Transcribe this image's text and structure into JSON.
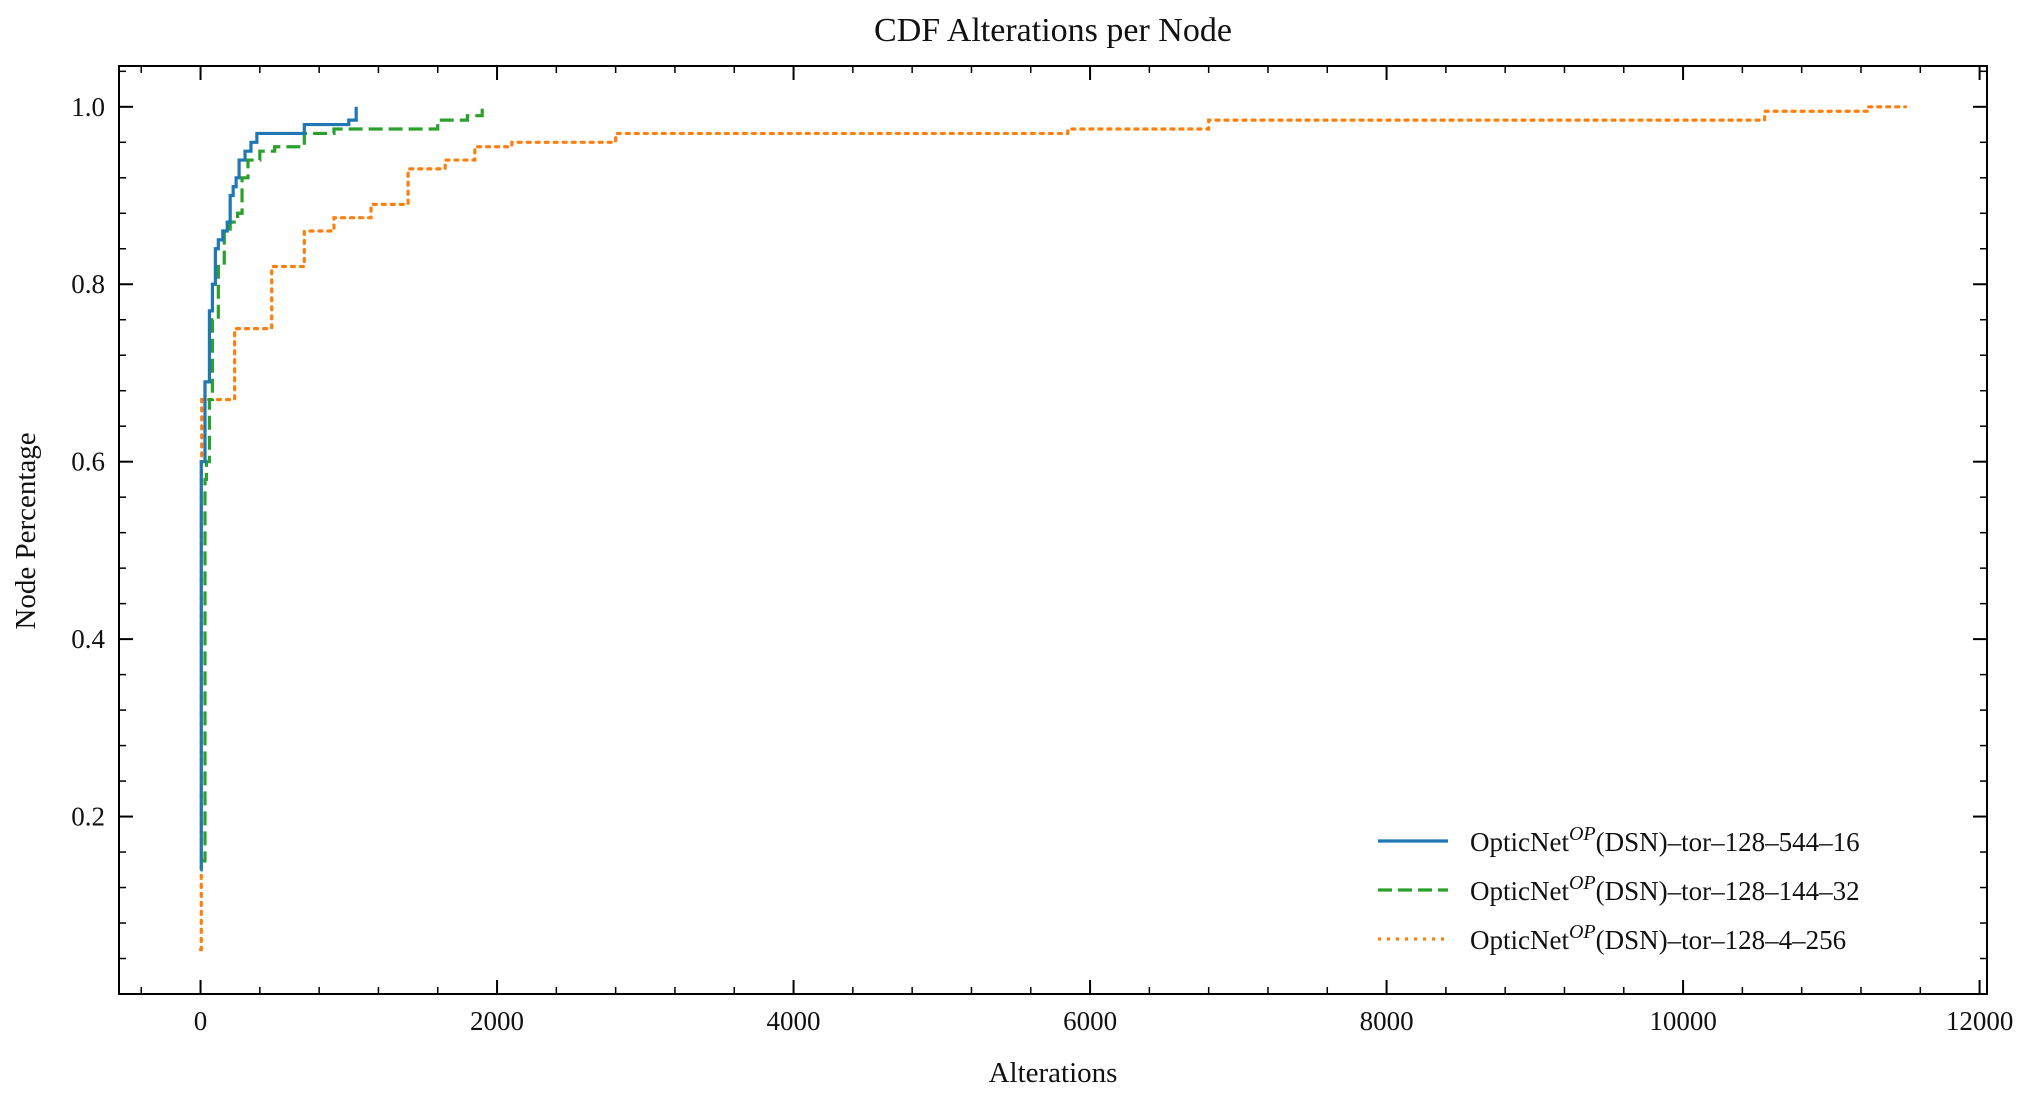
{
  "chart_data": {
    "type": "line",
    "title": "CDF Alterations per Node",
    "xlabel": "Alterations",
    "ylabel": "Node Percentage",
    "xlim": [
      -550,
      12050
    ],
    "ylim": [
      0.0,
      1.046
    ],
    "xticks": [
      0,
      2000,
      4000,
      6000,
      8000,
      10000,
      12000
    ],
    "xtick_labels": [
      "0",
      "2000",
      "4000",
      "6000",
      "8000",
      "10000",
      "12000"
    ],
    "yticks": [
      0.2,
      0.4,
      0.6,
      0.8,
      1.0
    ],
    "ytick_labels": [
      "0.2",
      "0.4",
      "0.6",
      "0.8",
      "1.0"
    ],
    "legend_position": "bottom-right",
    "series": [
      {
        "name": "OpticNet",
        "name_sup": "OP",
        "name_suffix": "(DSN)–tor–128–544–16",
        "color": "#1f77b4",
        "style": "solid",
        "points": [
          [
            0,
            0.14
          ],
          [
            5,
            0.6
          ],
          [
            30,
            0.69
          ],
          [
            60,
            0.77
          ],
          [
            80,
            0.8
          ],
          [
            100,
            0.84
          ],
          [
            120,
            0.85
          ],
          [
            150,
            0.86
          ],
          [
            180,
            0.87
          ],
          [
            200,
            0.9
          ],
          [
            220,
            0.91
          ],
          [
            240,
            0.92
          ],
          [
            260,
            0.94
          ],
          [
            300,
            0.95
          ],
          [
            340,
            0.96
          ],
          [
            380,
            0.97
          ],
          [
            500,
            0.97
          ],
          [
            700,
            0.98
          ],
          [
            1000,
            0.985
          ],
          [
            1050,
            1.0
          ]
        ]
      },
      {
        "name": "OpticNet",
        "name_sup": "OP",
        "name_suffix": "(DSN)–tor–128–144–32",
        "color": "#2ca02c",
        "style": "dashed",
        "points": [
          [
            0,
            0.15
          ],
          [
            30,
            0.58
          ],
          [
            40,
            0.6
          ],
          [
            60,
            0.67
          ],
          [
            80,
            0.76
          ],
          [
            120,
            0.82
          ],
          [
            160,
            0.86
          ],
          [
            200,
            0.87
          ],
          [
            250,
            0.88
          ],
          [
            280,
            0.92
          ],
          [
            320,
            0.94
          ],
          [
            400,
            0.95
          ],
          [
            500,
            0.955
          ],
          [
            700,
            0.97
          ],
          [
            900,
            0.975
          ],
          [
            1600,
            0.985
          ],
          [
            1800,
            0.99
          ],
          [
            1900,
            1.0
          ]
        ]
      },
      {
        "name": "OpticNet",
        "name_sup": "OP",
        "name_suffix": "(DSN)–tor–128–4–256",
        "color": "#ff7f0e",
        "style": "dotted",
        "points": [
          [
            0,
            0.05
          ],
          [
            5,
            0.6
          ],
          [
            8,
            0.67
          ],
          [
            100,
            0.67
          ],
          [
            230,
            0.75
          ],
          [
            480,
            0.82
          ],
          [
            700,
            0.86
          ],
          [
            900,
            0.875
          ],
          [
            1150,
            0.89
          ],
          [
            1400,
            0.93
          ],
          [
            1650,
            0.94
          ],
          [
            1850,
            0.955
          ],
          [
            2100,
            0.96
          ],
          [
            2800,
            0.97
          ],
          [
            5850,
            0.975
          ],
          [
            6800,
            0.985
          ],
          [
            10550,
            0.995
          ],
          [
            11250,
            1.0
          ],
          [
            11500,
            1.0
          ]
        ]
      }
    ]
  }
}
